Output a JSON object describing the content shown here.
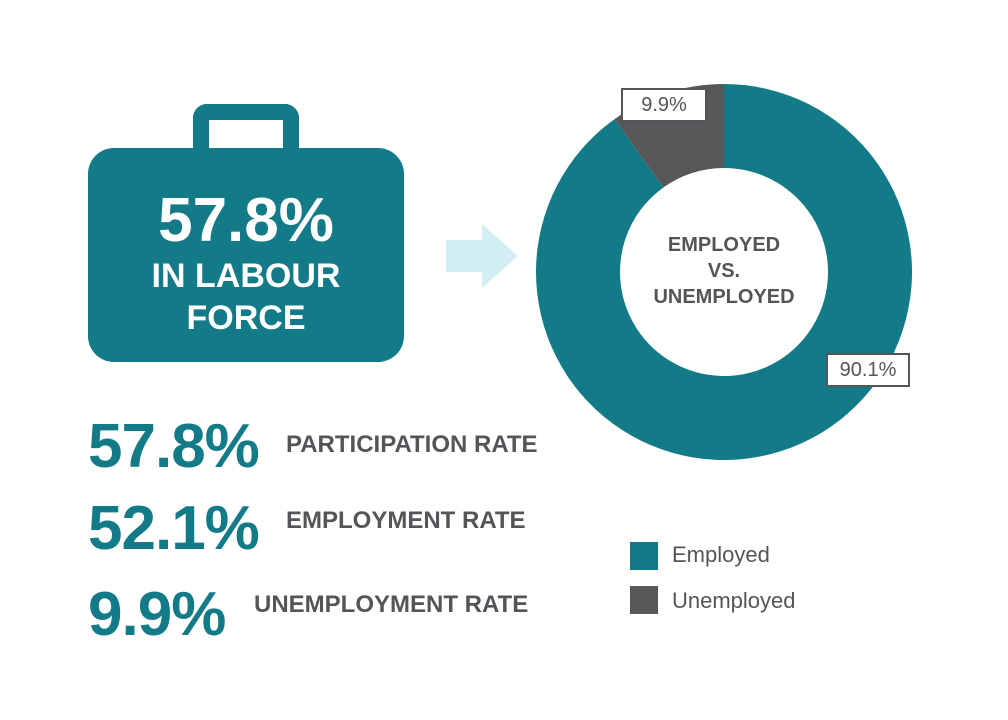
{
  "colors": {
    "employed": "#137a87",
    "unemployed": "#58585b",
    "arrow": "#d3eef3",
    "text_dark": "#555559"
  },
  "briefcase": {
    "percent": "57.8%",
    "line1": "IN LABOUR",
    "line2": "FORCE"
  },
  "stats": [
    {
      "value": "57.8%",
      "label": "PARTICIPATION RATE"
    },
    {
      "value": "52.1%",
      "label": "EMPLOYMENT RATE"
    },
    {
      "value": "9.9%",
      "label": "UNEMPLOYMENT RATE"
    }
  ],
  "chart_data": {
    "type": "pie",
    "style": "donut",
    "title_lines": [
      "EMPLOYED",
      "VS.",
      "UNEMPLOYED"
    ],
    "slices": [
      {
        "name": "Employed",
        "value": 90.1,
        "label": "90.1%",
        "color": "#137a87"
      },
      {
        "name": "Unemployed",
        "value": 9.9,
        "label": "9.9%",
        "color": "#58585b"
      }
    ],
    "start": "12 o'clock",
    "direction": "clockwise",
    "legend": {
      "placement": "bottom-right",
      "entries": [
        "Employed",
        "Unemployed"
      ]
    }
  },
  "icons": {
    "briefcase": "briefcase-icon",
    "arrow": "right-arrow-icon"
  }
}
